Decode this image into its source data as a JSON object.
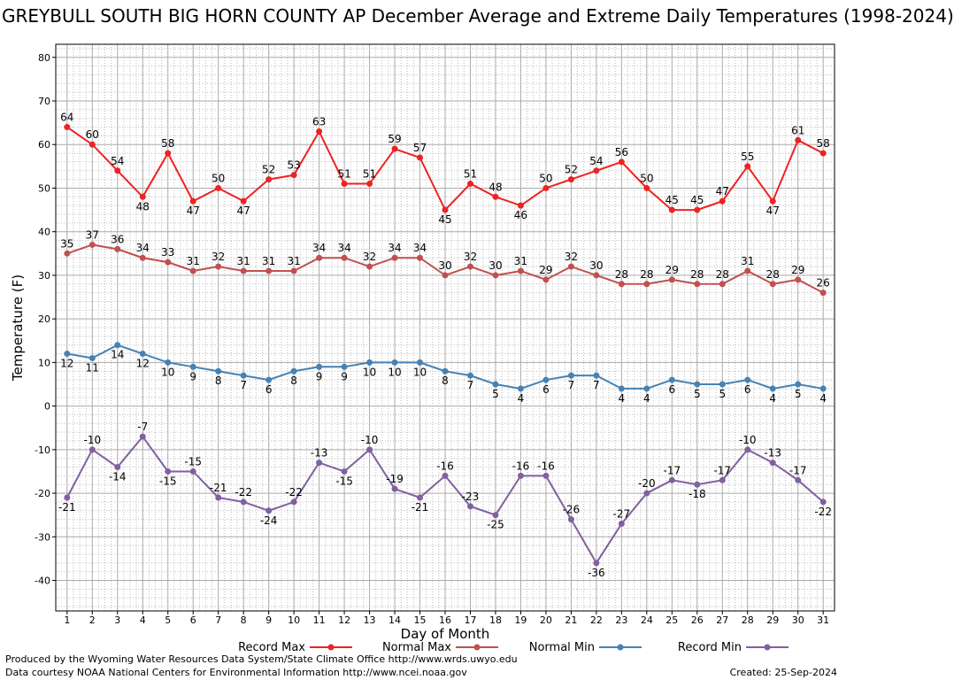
{
  "title": "GREYBULL SOUTH BIG HORN COUNTY AP December Average and Extreme Daily Temperatures (1998-2024)",
  "footer": {
    "produced_by": "Produced by the Wyoming Water Resources Data System/State Climate Office http://www.wrds.uwyo.edu",
    "courtesy": "Data courtesy NOAA National Centers for Environmental Information http://www.ncei.noaa.gov",
    "created": "Created: 25-Sep-2024"
  },
  "chart_data": {
    "type": "line",
    "xlabel": "Day of Month",
    "ylabel": "Temperature (F)",
    "ylim": [
      -47,
      83
    ],
    "yticks": [
      -40,
      -30,
      -20,
      -10,
      0,
      10,
      20,
      30,
      40,
      50,
      60,
      70,
      80
    ],
    "grid": true,
    "legend_position": "bottom",
    "x": [
      1,
      2,
      3,
      4,
      5,
      6,
      7,
      8,
      9,
      10,
      11,
      12,
      13,
      14,
      15,
      16,
      17,
      18,
      19,
      20,
      21,
      22,
      23,
      24,
      25,
      26,
      27,
      28,
      29,
      30,
      31
    ],
    "series": [
      {
        "name": "Record Max",
        "color": "#ee2222",
        "values": [
          64,
          60,
          54,
          48,
          58,
          47,
          50,
          47,
          52,
          53,
          63,
          51,
          51,
          59,
          57,
          45,
          51,
          48,
          46,
          50,
          52,
          54,
          56,
          50,
          45,
          45,
          47,
          55,
          47,
          61,
          58
        ]
      },
      {
        "name": "Normal Max",
        "color": "#c05050",
        "values": [
          35,
          37,
          36,
          34,
          33,
          31,
          32,
          31,
          31,
          31,
          34,
          34,
          32,
          34,
          34,
          30,
          32,
          30,
          31,
          29,
          32,
          30,
          28,
          28,
          29,
          28,
          28,
          31,
          28,
          29,
          26
        ]
      },
      {
        "name": "Normal Min",
        "color": "#4682b4",
        "values": [
          12,
          11,
          14,
          12,
          10,
          9,
          8,
          7,
          6,
          8,
          9,
          9,
          10,
          10,
          10,
          8,
          7,
          5,
          4,
          6,
          7,
          7,
          4,
          4,
          6,
          5,
          5,
          6,
          4,
          5,
          4
        ]
      },
      {
        "name": "Record Min",
        "color": "#8060a0",
        "values": [
          -21,
          -10,
          -14,
          -7,
          -15,
          -15,
          -21,
          -22,
          -24,
          -22,
          -13,
          -15,
          -10,
          -19,
          -21,
          -16,
          -23,
          -25,
          -16,
          -16,
          -26,
          -36,
          -27,
          -20,
          -17,
          -18,
          -17,
          -10,
          -13,
          -17,
          -22
        ]
      }
    ]
  }
}
